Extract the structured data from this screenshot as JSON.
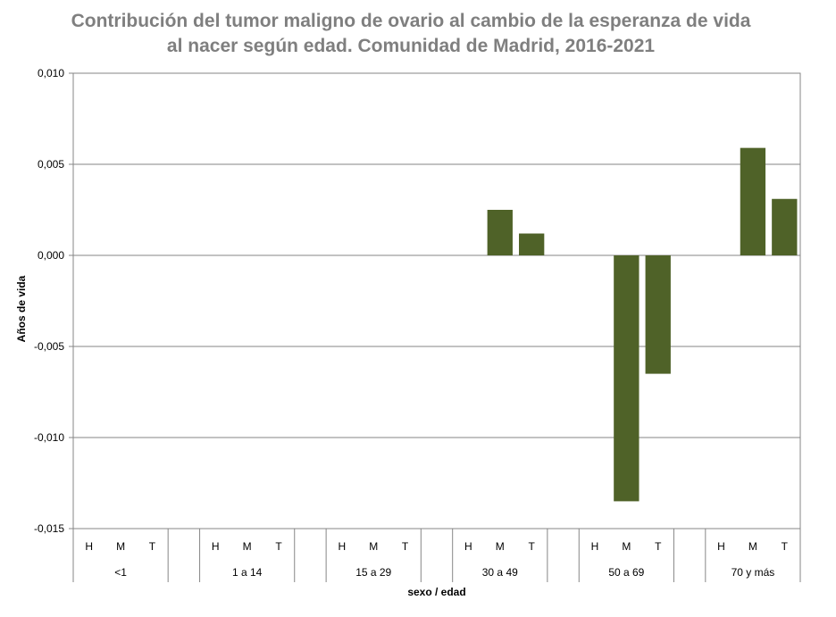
{
  "chart_data": {
    "type": "bar",
    "title_lines": [
      "Contribución del tumor maligno de ovario al cambio de la esperanza de vida",
      "al nacer según edad. Comunidad de Madrid, 2016-2021"
    ],
    "ylabel": "Años de vida",
    "xlabel": "sexo / edad",
    "ylim": [
      -0.015,
      0.01
    ],
    "yticks": [
      0.01,
      0.005,
      0.0,
      -0.005,
      -0.01,
      -0.015
    ],
    "ytick_labels": [
      "0,010",
      "0,005",
      "0,000",
      "-0,005",
      "-0,010",
      "-0,015"
    ],
    "grid": true,
    "bar_color": "#4f6228",
    "groups": [
      {
        "label": "<1",
        "bars": [
          {
            "sex": "H",
            "value": null
          },
          {
            "sex": "M",
            "value": 0
          },
          {
            "sex": "T",
            "value": 0
          }
        ]
      },
      {
        "label": "1 a 14",
        "bars": [
          {
            "sex": "H",
            "value": null
          },
          {
            "sex": "M",
            "value": 0
          },
          {
            "sex": "T",
            "value": 0
          }
        ]
      },
      {
        "label": "15 a 29",
        "bars": [
          {
            "sex": "H",
            "value": null
          },
          {
            "sex": "M",
            "value": 0
          },
          {
            "sex": "T",
            "value": 0
          }
        ]
      },
      {
        "label": "30 a 49",
        "bars": [
          {
            "sex": "H",
            "value": null
          },
          {
            "sex": "M",
            "value": 0.0025
          },
          {
            "sex": "T",
            "value": 0.0012
          }
        ]
      },
      {
        "label": "50 a 69",
        "bars": [
          {
            "sex": "H",
            "value": null
          },
          {
            "sex": "M",
            "value": -0.0135
          },
          {
            "sex": "T",
            "value": -0.0065
          }
        ]
      },
      {
        "label": "70 y más",
        "bars": [
          {
            "sex": "H",
            "value": null
          },
          {
            "sex": "M",
            "value": 0.0059
          },
          {
            "sex": "T",
            "value": 0.0031
          }
        ]
      }
    ]
  }
}
